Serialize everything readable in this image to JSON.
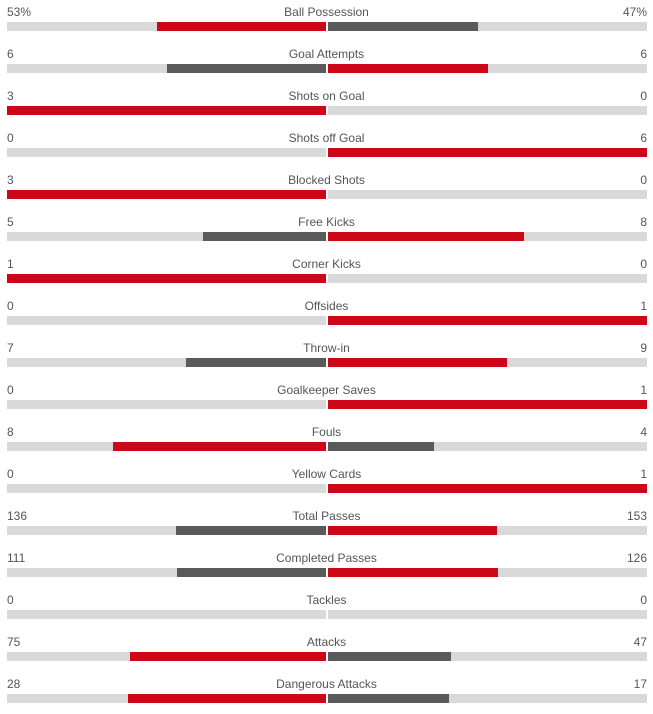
{
  "colors": {
    "leading": "#cc0717",
    "trailing": "#5a5a5a",
    "track": "#d9d9d9"
  },
  "stats": [
    {
      "name": "Ball Possession",
      "home_label": "53%",
      "away_label": "47%",
      "home": 53,
      "away": 47
    },
    {
      "name": "Goal Attempts",
      "home_label": "6",
      "away_label": "6",
      "home": 6,
      "away": 6
    },
    {
      "name": "Shots on Goal",
      "home_label": "3",
      "away_label": "0",
      "home": 3,
      "away": 0
    },
    {
      "name": "Shots off Goal",
      "home_label": "0",
      "away_label": "6",
      "home": 0,
      "away": 6
    },
    {
      "name": "Blocked Shots",
      "home_label": "3",
      "away_label": "0",
      "home": 3,
      "away": 0
    },
    {
      "name": "Free Kicks",
      "home_label": "5",
      "away_label": "8",
      "home": 5,
      "away": 8
    },
    {
      "name": "Corner Kicks",
      "home_label": "1",
      "away_label": "0",
      "home": 1,
      "away": 0
    },
    {
      "name": "Offsides",
      "home_label": "0",
      "away_label": "1",
      "home": 0,
      "away": 1
    },
    {
      "name": "Throw-in",
      "home_label": "7",
      "away_label": "9",
      "home": 7,
      "away": 9
    },
    {
      "name": "Goalkeeper Saves",
      "home_label": "0",
      "away_label": "1",
      "home": 0,
      "away": 1
    },
    {
      "name": "Fouls",
      "home_label": "8",
      "away_label": "4",
      "home": 8,
      "away": 4
    },
    {
      "name": "Yellow Cards",
      "home_label": "0",
      "away_label": "1",
      "home": 0,
      "away": 1
    },
    {
      "name": "Total Passes",
      "home_label": "136",
      "away_label": "153",
      "home": 136,
      "away": 153
    },
    {
      "name": "Completed Passes",
      "home_label": "111",
      "away_label": "126",
      "home": 111,
      "away": 126
    },
    {
      "name": "Tackles",
      "home_label": "0",
      "away_label": "0",
      "home": 0,
      "away": 0
    },
    {
      "name": "Attacks",
      "home_label": "75",
      "away_label": "47",
      "home": 75,
      "away": 47
    },
    {
      "name": "Dangerous Attacks",
      "home_label": "28",
      "away_label": "17",
      "home": 28,
      "away": 17
    }
  ]
}
